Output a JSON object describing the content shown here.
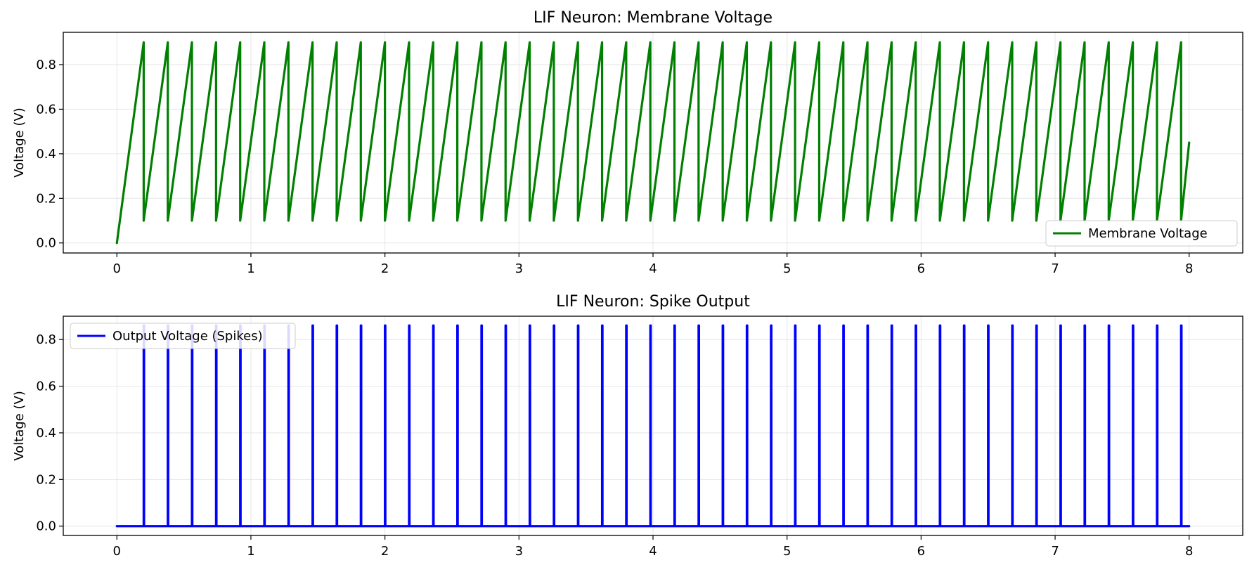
{
  "chart_data": [
    {
      "type": "line",
      "title": "LIF Neuron: Membrane Voltage",
      "xlabel": "",
      "ylabel": "Voltage (V)",
      "xlim": [
        -0.4,
        8.4
      ],
      "ylim": [
        -0.045,
        0.945
      ],
      "xticks": [
        "0",
        "1",
        "2",
        "3",
        "4",
        "5",
        "6",
        "7",
        "8"
      ],
      "yticks": [
        "0.0",
        "0.2",
        "0.4",
        "0.6",
        "0.8"
      ],
      "grid": true,
      "legend_position": "lower right",
      "color": "#008000",
      "series": [
        {
          "name": "Membrane Voltage",
          "model": {
            "t_start": 0.0,
            "t_end": 8.0,
            "first_spike": 0.2,
            "spike_interval": 0.18,
            "threshold": 0.9,
            "reset": 0.1,
            "end_value": 0.45
          }
        }
      ]
    },
    {
      "type": "line",
      "title": "LIF Neuron: Spike Output",
      "xlabel": "",
      "ylabel": "Voltage (V)",
      "xlim": [
        -0.4,
        8.4
      ],
      "ylim": [
        -0.04,
        0.9
      ],
      "xticks": [
        "0",
        "1",
        "2",
        "3",
        "4",
        "5",
        "6",
        "7",
        "8"
      ],
      "yticks": [
        "0.0",
        "0.2",
        "0.4",
        "0.6",
        "0.8"
      ],
      "grid": true,
      "legend_position": "upper left",
      "color": "#0000ff",
      "series": [
        {
          "name": "Output Voltage (Spikes)",
          "model": {
            "t_start": 0.0,
            "t_end": 8.0,
            "first_spike": 0.2,
            "spike_interval": 0.18,
            "spike_height": 0.86,
            "baseline": 0.0
          }
        }
      ]
    }
  ]
}
